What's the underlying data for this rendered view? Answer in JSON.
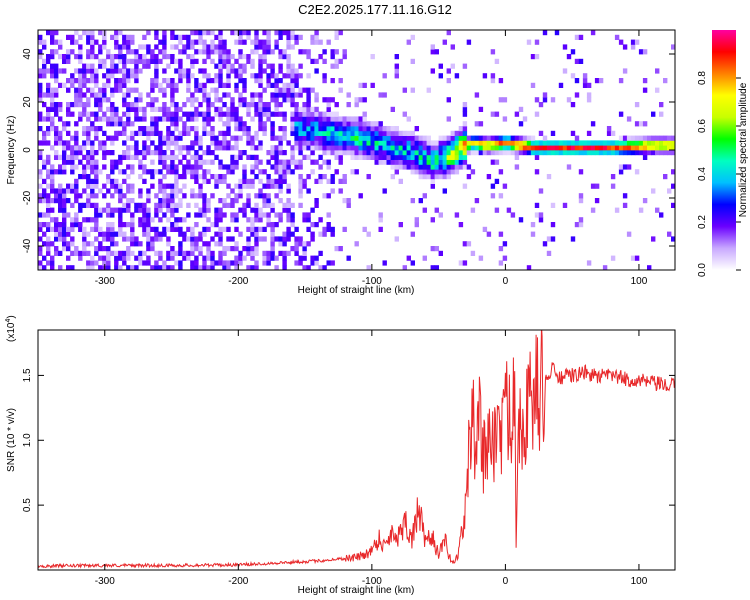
{
  "title": "C2E2.2025.177.11.16.G12",
  "chart_data": [
    {
      "type": "heatmap",
      "xlabel": "Height of straight line (km)",
      "ylabel": "Frequency (Hz)",
      "xlim": [
        -350,
        127
      ],
      "ylim": [
        -50,
        50
      ],
      "xticks": [
        -300,
        -200,
        -100,
        0,
        100
      ],
      "yticks": [
        -40,
        -20,
        0,
        20,
        40
      ],
      "colorbar": {
        "label": "Normalized spectral amplitude",
        "range": [
          0.0,
          1.0
        ],
        "ticks": [
          "0.0",
          "0.2",
          "0.4",
          "0.6",
          "0.8"
        ],
        "colormap": [
          "#ffffff",
          "#c8a8ff",
          "#6a00ff",
          "#0000ff",
          "#00bfff",
          "#00ffc0",
          "#00ff00",
          "#c8ff00",
          "#ffff00",
          "#ff8000",
          "#ff0000",
          "#ff00a0"
        ]
      },
      "ridge": {
        "x": [
          -150,
          -130,
          -110,
          -90,
          -70,
          -55,
          -45,
          -35,
          -25,
          -15,
          0,
          20,
          50,
          80,
          110,
          127
        ],
        "y": [
          8,
          6,
          4,
          1,
          -2,
          -6,
          -4,
          0,
          2,
          1,
          2,
          0,
          0,
          0,
          1,
          1
        ],
        "peak_amplitude": [
          0.4,
          0.45,
          0.5,
          0.45,
          0.45,
          0.5,
          0.6,
          0.8,
          0.85,
          0.9,
          0.95,
          0.98,
          0.98,
          0.95,
          0.9,
          0.85
        ]
      },
      "noise_region_x": [
        -350,
        -150
      ]
    },
    {
      "type": "line",
      "xlabel": "Height of straight line (km)",
      "ylabel": "SNR (10 * v/v)",
      "y_scale_label": "(x10",
      "y_scale_exp": "4",
      "xlim": [
        -350,
        127
      ],
      "ylim": [
        0,
        18500
      ],
      "xticks": [
        -300,
        -200,
        -100,
        0,
        100
      ],
      "yticks": [
        "0.5",
        "1.0",
        "1.5"
      ],
      "ytick_values": [
        5000,
        10000,
        15000
      ],
      "line_color": "#e8282a",
      "series": [
        {
          "x": [
            -350,
            -300,
            -250,
            -200,
            -180,
            -160,
            -140,
            -120,
            -110,
            -100,
            -95,
            -90,
            -85,
            -80,
            -75,
            -70,
            -65,
            -60,
            -55,
            -50,
            -45,
            -42,
            -38,
            -35,
            -30,
            -28,
            -25,
            -22,
            -20,
            -18,
            -15,
            -12,
            -10,
            -8,
            -5,
            -2,
            0,
            3,
            5,
            7,
            8,
            10,
            15,
            20,
            25,
            30,
            35,
            40,
            50,
            60,
            70,
            80,
            90,
            100,
            110,
            120,
            127
          ],
          "y": [
            300,
            350,
            350,
            400,
            500,
            600,
            700,
            900,
            1000,
            1500,
            2500,
            1800,
            3000,
            2600,
            4000,
            2200,
            4800,
            2000,
            2600,
            1200,
            2200,
            1000,
            500,
            1500,
            4500,
            8000,
            12000,
            9000,
            13500,
            9500,
            8500,
            12000,
            9500,
            10000,
            11000,
            10500,
            12000,
            12500,
            11000,
            18500,
            2500,
            11500,
            12000,
            13000,
            14000,
            14500,
            15500,
            14800,
            15000,
            15200,
            14900,
            15000,
            14700,
            14600,
            14400,
            14200,
            14200
          ]
        }
      ]
    }
  ]
}
